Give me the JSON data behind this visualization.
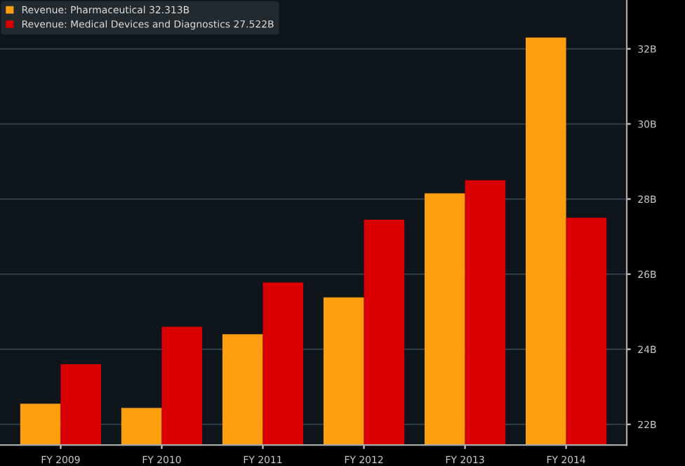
{
  "chart_data": {
    "type": "bar",
    "categories": [
      "FY 2009",
      "FY 2010",
      "FY 2011",
      "FY 2012",
      "FY 2013",
      "FY 2014"
    ],
    "series": [
      {
        "name": "Revenue: Pharmaceutical 32.313B",
        "color": "#ff9e10",
        "values": [
          22.55,
          22.44,
          24.4,
          25.38,
          28.15,
          32.3
        ]
      },
      {
        "name": "Revenue: Medical Devices and Diagnostics 27.522B",
        "color": "#d80000",
        "values": [
          23.6,
          24.6,
          25.78,
          27.45,
          28.5,
          27.5
        ]
      }
    ],
    "ylim": [
      21.45,
      33.3
    ],
    "yticks": [
      {
        "value": 22,
        "label": "22B"
      },
      {
        "value": 24,
        "label": "24B"
      },
      {
        "value": 26,
        "label": "26B"
      },
      {
        "value": 28,
        "label": "28B"
      },
      {
        "value": 30,
        "label": "30B"
      },
      {
        "value": 32,
        "label": "32B"
      }
    ],
    "grid": "y",
    "legend": "top left"
  }
}
